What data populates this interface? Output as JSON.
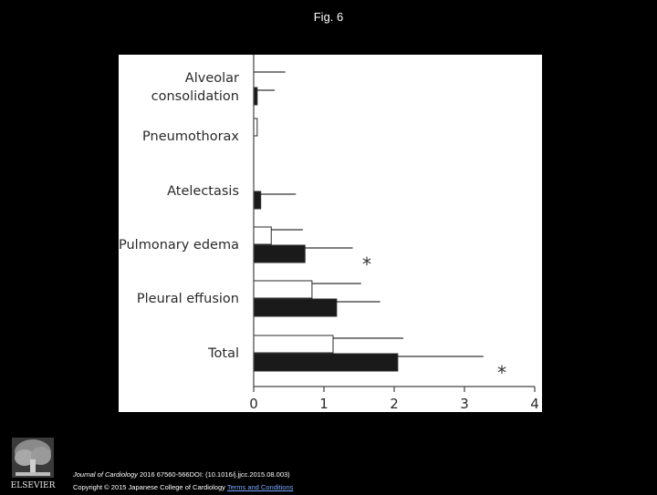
{
  "figure_title": "Fig. 6",
  "chart_data": {
    "type": "bar",
    "orientation": "horizontal",
    "categories": [
      "Alveolar consolidation",
      "Pneumothorax",
      "Atelectasis",
      "Pulmonary edema",
      "Pleural effusion",
      "Total"
    ],
    "category_lines": [
      [
        "Alveolar",
        "consolidation"
      ],
      [
        "Pneumothorax"
      ],
      [
        "Atelectasis"
      ],
      [
        "Pulmonary edema"
      ],
      [
        "Pleural effusion"
      ],
      [
        "Total"
      ]
    ],
    "series": [
      {
        "values": [
          0.0,
          0.05,
          0.0,
          0.25,
          0.83,
          1.13
        ],
        "error": [
          0.45,
          0.0,
          0.0,
          0.45,
          0.7,
          1.0
        ],
        "fill": "#ffffff"
      },
      {
        "values": [
          0.05,
          0.0,
          0.1,
          0.73,
          1.18,
          2.05
        ],
        "error": [
          0.25,
          0.0,
          0.5,
          0.68,
          0.62,
          1.22
        ],
        "fill": "#1a1a1a"
      }
    ],
    "significance": [
      "",
      "",
      "",
      "*",
      "",
      "*"
    ],
    "xlim": [
      0,
      4
    ],
    "xticks": [
      "0",
      "1",
      "2",
      "3",
      "4"
    ],
    "grid": false,
    "legend": "none"
  },
  "citation": {
    "journal": "Journal of Cardiology",
    "reference": " 2016 67560-566DOI: (10.1016/j.jjcc.2015.08.003)",
    "copyright": "Copyright © 2015 Japanese College of Cardiology",
    "terms_link": "Terms and Conditions"
  },
  "publisher_logo_text": "ELSEVIER"
}
